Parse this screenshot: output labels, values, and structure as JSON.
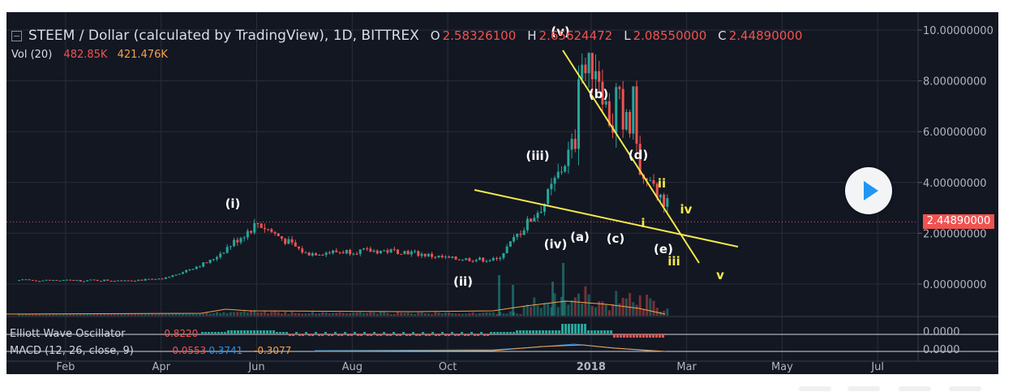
{
  "header": {
    "symbol_line": "STEEM / Dollar (calculated by TradingView), 1D, BITTREX",
    "open_label": "O",
    "open_value": "2.58326100",
    "high_label": "H",
    "high_value": "2.65624472",
    "low_label": "L",
    "low_value": "2.08550000",
    "close_label": "C",
    "close_value": "2.44890000"
  },
  "volume": {
    "label": "Vol (20)",
    "value1": "482.85K",
    "value2": "421.476K"
  },
  "price_tag": "2.44890000",
  "indicators": {
    "ewo_label": "Elliott Wave Oscillator",
    "ewo_value": "-0.8220",
    "ewo_axis": "0.0000",
    "macd_label": "MACD (12, 26, close, 9)",
    "macd_v1": "-0.0553",
    "macd_v2": "-0.3741",
    "macd_v3": "-0.3077",
    "macd_axis": "0.0000"
  },
  "colors": {
    "background": "#131722",
    "up": "#26a69a",
    "down": "#ef5350",
    "wave_label_white": "#ffffff",
    "wave_label_yellow": "#f5e94a",
    "trendline": "#f5e94a",
    "play_icon": "#2196f3"
  },
  "chart_data": {
    "type": "line",
    "title": "STEEM / Dollar (calculated by TradingView), 1D, BITTREX",
    "xlabel": "",
    "ylabel": "",
    "x_ticks": [
      "Feb",
      "Apr",
      "Jun",
      "Aug",
      "Oct",
      "2018",
      "Mar",
      "May",
      "Jul"
    ],
    "y_ticks": [
      "10.00000000",
      "8.00000000",
      "6.00000000",
      "4.00000000",
      "2.00000000",
      "0.00000000"
    ],
    "ylim": [
      -0.6,
      10.4
    ],
    "grid": true,
    "series": [
      {
        "values_by_month": [
          {
            "x": "2017-01",
            "y": 0.15
          },
          {
            "x": "2017-02",
            "y": 0.14
          },
          {
            "x": "2017-03",
            "y": 0.15
          },
          {
            "x": "2017-04",
            "y": 0.18
          },
          {
            "x": "2017-05",
            "y": 0.9
          },
          {
            "x": "2017-06",
            "y": 2.4
          },
          {
            "x": "2017-07",
            "y": 1.2
          },
          {
            "x": "2017-08",
            "y": 1.3
          },
          {
            "x": "2017-09",
            "y": 1.3
          },
          {
            "x": "2017-10",
            "y": 1.0
          },
          {
            "x": "2017-11",
            "y": 0.95
          },
          {
            "x": "2017-12",
            "y": 3.2
          },
          {
            "x": "2018-01",
            "y": 7.0
          },
          {
            "x": "2018-02",
            "y": 4.2
          },
          {
            "x": "2018-03",
            "y": 2.45
          }
        ]
      }
    ],
    "wave_labels": [
      {
        "text": "(i)",
        "color": "white"
      },
      {
        "text": "(ii)",
        "color": "white"
      },
      {
        "text": "(iii)",
        "color": "white"
      },
      {
        "text": "(iv)",
        "color": "white"
      },
      {
        "text": "(v)",
        "color": "white"
      },
      {
        "text": "(a)",
        "color": "white"
      },
      {
        "text": "(b)",
        "color": "white"
      },
      {
        "text": "(c)",
        "color": "white"
      },
      {
        "text": "(d)",
        "color": "white"
      },
      {
        "text": "(e)",
        "color": "white"
      },
      {
        "text": "i",
        "color": "yellow"
      },
      {
        "text": "ii",
        "color": "yellow"
      },
      {
        "text": "iii",
        "color": "yellow"
      },
      {
        "text": "iv",
        "color": "yellow"
      },
      {
        "text": "v",
        "color": "yellow"
      }
    ]
  }
}
